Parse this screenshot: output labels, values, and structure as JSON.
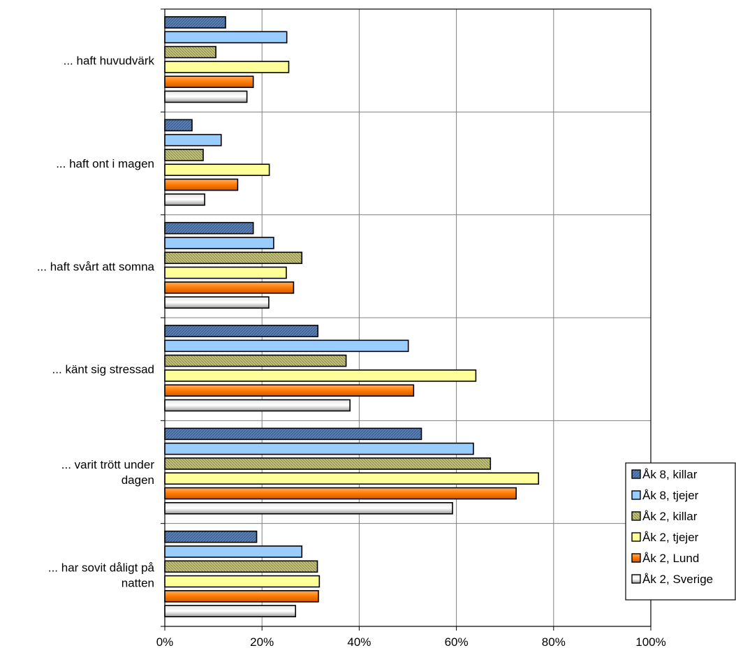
{
  "chart_data": {
    "type": "bar",
    "orientation": "horizontal",
    "categories": [
      "... haft huvudvärk",
      "... haft ont i magen",
      "... haft svårt att somna",
      "... känt sig stressad",
      "... varit trött under dagen",
      "... har sovit dåligt på natten"
    ],
    "category_lines": [
      [
        "... haft huvudvärk"
      ],
      [
        "... haft ont i magen"
      ],
      [
        "... haft svårt att somna"
      ],
      [
        "... känt sig stressad"
      ],
      [
        "... varit trött under",
        "dagen"
      ],
      [
        "... har sovit dåligt på",
        "natten"
      ]
    ],
    "series": [
      {
        "name": "Åk 8, killar",
        "color": "#5b7fb3",
        "pattern": "hatch-dark",
        "values": [
          12.5,
          5.6,
          18.2,
          31.5,
          52.8,
          18.9
        ]
      },
      {
        "name": "Åk 8, tjejer",
        "color": "#99ccff",
        "pattern": "solid",
        "values": [
          25.1,
          11.6,
          22.4,
          50.1,
          63.5,
          28.2
        ]
      },
      {
        "name": "Åk 2, killar",
        "color": "#b3b36b",
        "pattern": "hatch-olive",
        "values": [
          10.5,
          7.9,
          28.2,
          37.3,
          67.0,
          31.4
        ]
      },
      {
        "name": "Åk 2, tjejer",
        "color": "#ffff99",
        "pattern": "solid",
        "values": [
          25.5,
          21.5,
          25.0,
          64.0,
          76.9,
          31.8
        ]
      },
      {
        "name": "Åk 2, Lund",
        "color": "#ff8000",
        "pattern": "gradient-orange",
        "values": [
          18.2,
          15.0,
          26.5,
          51.2,
          72.3,
          31.6
        ]
      },
      {
        "name": "Åk 2, Sverige",
        "color": "#ffffff",
        "pattern": "gradient-gray",
        "values": [
          16.9,
          8.2,
          21.4,
          38.1,
          59.2,
          26.9
        ]
      }
    ],
    "x_ticks": [
      "0%",
      "20%",
      "40%",
      "60%",
      "80%",
      "100%"
    ],
    "xlim": [
      0,
      100
    ],
    "grid": true,
    "legend_position": "right"
  }
}
